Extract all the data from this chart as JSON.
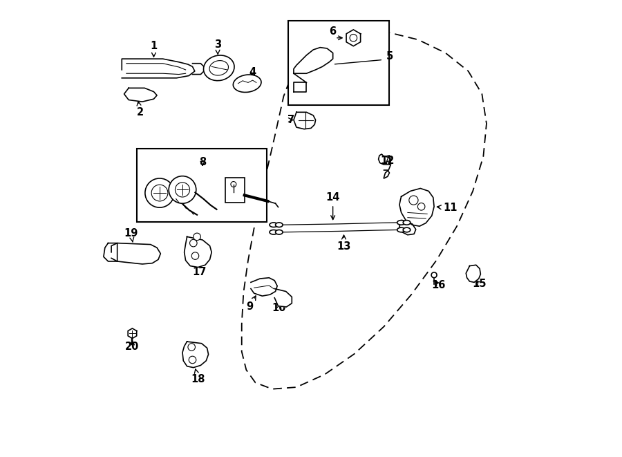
{
  "bg_color": "#ffffff",
  "line_color": "#000000",
  "figsize": [
    9.0,
    6.61
  ],
  "dpi": 100,
  "door_outline_x": [
    0.48,
    0.535,
    0.6,
    0.67,
    0.735,
    0.795,
    0.845,
    0.875,
    0.885,
    0.878,
    0.855,
    0.82,
    0.775,
    0.72,
    0.66,
    0.595,
    0.53,
    0.468,
    0.415,
    0.378,
    0.358,
    0.348,
    0.348,
    0.352,
    0.362,
    0.375,
    0.39,
    0.405,
    0.42,
    0.44,
    0.48
  ],
  "door_outline_y": [
    0.895,
    0.92,
    0.932,
    0.93,
    0.914,
    0.885,
    0.845,
    0.795,
    0.73,
    0.658,
    0.582,
    0.505,
    0.43,
    0.355,
    0.285,
    0.225,
    0.18,
    0.152,
    0.148,
    0.162,
    0.19,
    0.23,
    0.29,
    0.36,
    0.43,
    0.5,
    0.568,
    0.635,
    0.7,
    0.79,
    0.895
  ]
}
